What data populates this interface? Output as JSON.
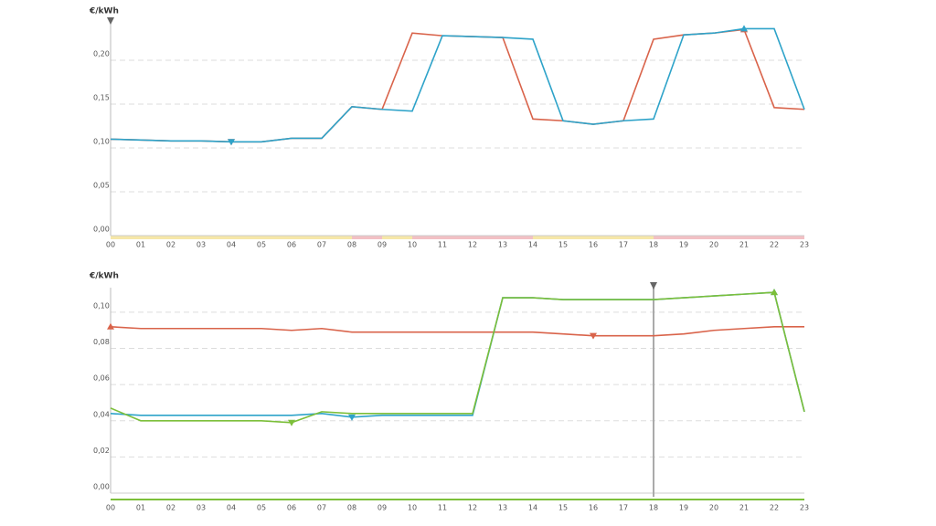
{
  "chart_data": [
    {
      "type": "line",
      "ylabel": "€/kWh",
      "categories": [
        "00",
        "01",
        "02",
        "03",
        "04",
        "05",
        "06",
        "07",
        "08",
        "09",
        "10",
        "11",
        "12",
        "13",
        "14",
        "15",
        "16",
        "17",
        "18",
        "19",
        "20",
        "21",
        "22",
        "23"
      ],
      "ylim": [
        0,
        0.2427
      ],
      "yticks": [
        {
          "value": 0,
          "label": "0,00"
        },
        {
          "value": 0.05,
          "label": "0,05"
        },
        {
          "value": 0.1,
          "label": "0,10"
        },
        {
          "value": 0.15,
          "label": "0,15"
        },
        {
          "value": 0.2,
          "label": "0,20"
        }
      ],
      "grid": true,
      "series": [
        {
          "color": "#d9634a",
          "values": [
            0.11,
            0.109,
            0.108,
            0.108,
            0.107,
            0.107,
            0.111,
            0.111,
            0.147,
            0.144,
            0.231,
            0.228,
            0.227,
            0.226,
            0.133,
            0.131,
            0.127,
            0.131,
            0.224,
            0.229,
            0.231,
            0.235,
            0.146,
            0.144
          ]
        },
        {
          "color": "#2ea3c9",
          "values": [
            0.11,
            0.109,
            0.108,
            0.108,
            0.107,
            0.107,
            0.111,
            0.111,
            0.147,
            0.144,
            0.142,
            0.228,
            0.227,
            0.226,
            0.224,
            0.131,
            0.127,
            0.131,
            0.133,
            0.229,
            0.231,
            0.236,
            0.236,
            0.144
          ]
        }
      ]
    },
    {
      "type": "line",
      "ylabel": "€/kWh",
      "categories": [
        "00",
        "01",
        "02",
        "03",
        "04",
        "05",
        "06",
        "07",
        "08",
        "09",
        "10",
        "11",
        "12",
        "13",
        "14",
        "15",
        "16",
        "17",
        "18",
        "19",
        "20",
        "21",
        "22",
        "23"
      ],
      "ylim": [
        0,
        0.1136
      ],
      "yticks": [
        {
          "value": 0,
          "label": "0,00"
        },
        {
          "value": 0.02,
          "label": "0,02"
        },
        {
          "value": 0.04,
          "label": "0,04"
        },
        {
          "value": 0.06,
          "label": "0,06"
        },
        {
          "value": 0.08,
          "label": "0,08"
        },
        {
          "value": 0.1,
          "label": "0,10"
        }
      ],
      "grid": true,
      "series": [
        {
          "color": "#d9634a",
          "values": [
            0.092,
            0.091,
            0.091,
            0.091,
            0.091,
            0.091,
            0.09,
            0.091,
            0.089,
            0.089,
            0.089,
            0.089,
            0.089,
            0.089,
            0.089,
            0.088,
            0.087,
            0.087,
            0.087,
            0.088,
            0.09,
            0.091,
            0.092,
            0.092
          ]
        },
        {
          "color": "#2ea3c9",
          "values": [
            0.044,
            0.043,
            0.043,
            0.043,
            0.043,
            0.043,
            0.043,
            0.044,
            0.042,
            0.043,
            0.043,
            0.043,
            0.043,
            0.108,
            0.108,
            0.107,
            0.107,
            0.107,
            0.107,
            0.108,
            0.109,
            0.11,
            0.111,
            0.045
          ]
        },
        {
          "color": "#7cbf3a",
          "values": [
            0.047,
            0.04,
            0.04,
            0.04,
            0.04,
            0.04,
            0.039,
            0.045,
            0.044,
            0.044,
            0.044,
            0.044,
            0.044,
            0.108,
            0.108,
            0.107,
            0.107,
            0.107,
            0.107,
            0.108,
            0.109,
            0.11,
            0.111,
            0.045
          ]
        }
      ]
    }
  ]
}
